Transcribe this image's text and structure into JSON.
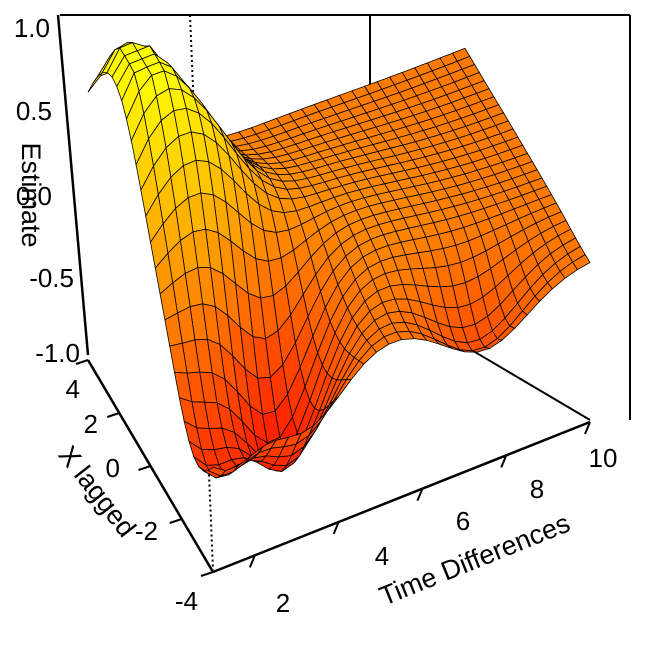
{
  "chart_data": {
    "type": "surface",
    "title": "",
    "xlabel": "Time Differences",
    "ylabel": "X lagged",
    "zlabel": "Estimate",
    "xlim": [
      1,
      10
    ],
    "ylim": [
      -4,
      4
    ],
    "zlim": [
      -1.0,
      1.0
    ],
    "x_ticks": [
      "2",
      "4",
      "6",
      "8",
      "10"
    ],
    "y_ticks": [
      "-4",
      "-2",
      "0",
      "2",
      "4"
    ],
    "z_ticks": [
      "-1.0",
      "-0.5",
      "0.0",
      "0.5",
      "1.0"
    ],
    "colormap": [
      "#ff0000",
      "#ff8000",
      "#ffff00"
    ],
    "grid": false,
    "box": true,
    "estimated_peaks": [
      {
        "x": 1.4,
        "y": 2.5,
        "z": 1.0
      },
      {
        "x": 2.8,
        "y": 0.5,
        "z": 0.6
      },
      {
        "x": 3.2,
        "y": -2.0,
        "z": -1.0
      },
      {
        "x": 1.3,
        "y": -3.0,
        "z": -0.5
      }
    ]
  }
}
